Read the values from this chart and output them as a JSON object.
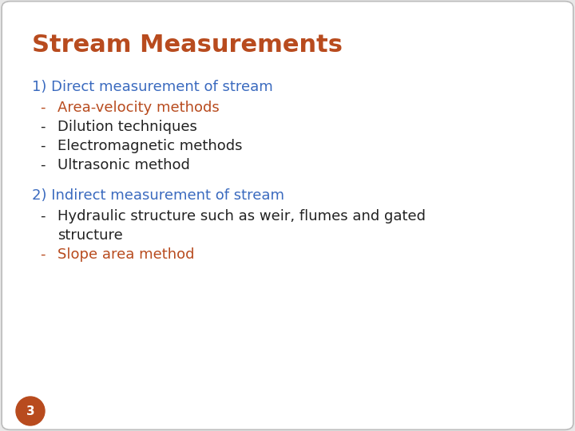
{
  "title": "Stream Measurements",
  "title_color": "#b84b1e",
  "title_fontsize": 22,
  "background_color": "#e8e8e8",
  "slide_bg": "#ffffff",
  "section1_heading": "1) Direct measurement of stream",
  "section1_heading_color": "#3a6abf",
  "section1_items": [
    {
      "text": "Area-velocity methods",
      "color": "#b84b1e"
    },
    {
      "text": "Dilution techniques",
      "color": "#222222"
    },
    {
      "text": "Electromagnetic methods",
      "color": "#222222"
    },
    {
      "text": "Ultrasonic method",
      "color": "#222222"
    }
  ],
  "section2_heading": "2) Indirect measurement of stream",
  "section2_heading_color": "#3a6abf",
  "section2_items": [
    {
      "text": "Hydraulic structure such as weir, flumes and gated\n    structure",
      "color": "#222222"
    },
    {
      "text": "Slope area method",
      "color": "#b84b1e"
    }
  ],
  "bullet": "-",
  "page_number": "3",
  "page_circle_color": "#b84b1e",
  "page_number_color": "#ffffff",
  "item_fontsize": 13,
  "heading_fontsize": 13
}
